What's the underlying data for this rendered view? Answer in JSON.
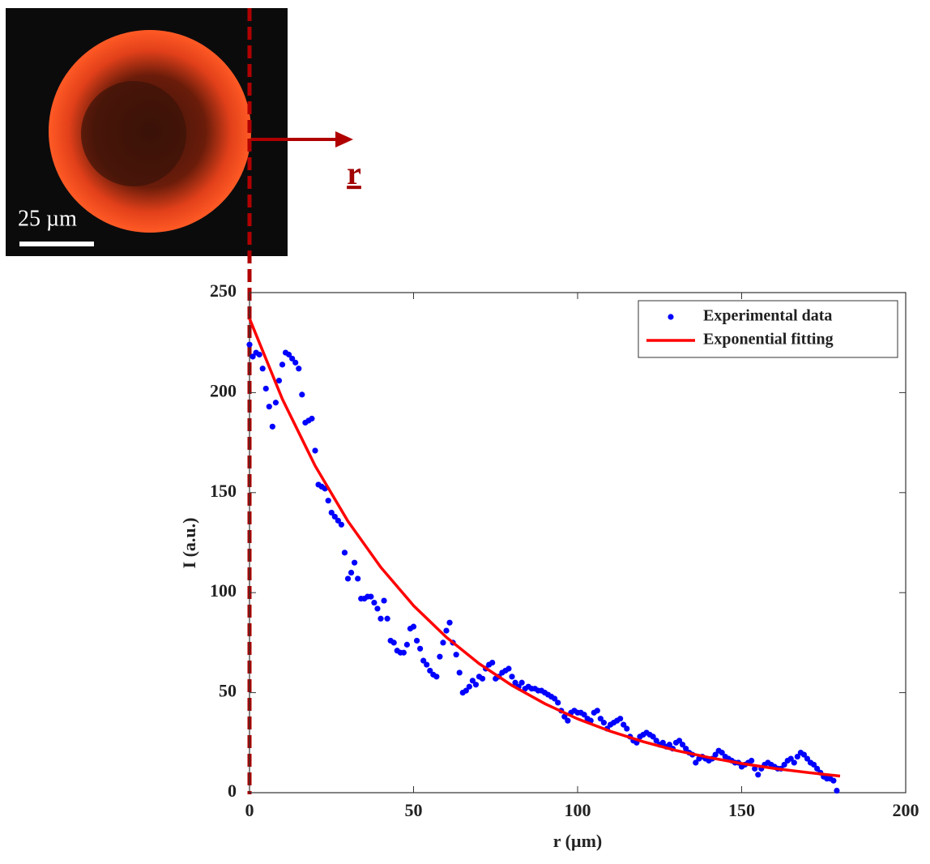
{
  "chart_data": {
    "type": "scatter",
    "xlabel": "r (µm)",
    "ylabel": "I (a.u.)",
    "annotations": [
      "25 µm",
      "r"
    ],
    "xlim": [
      0,
      200
    ],
    "xticks": [
      0,
      50,
      100,
      150,
      200
    ],
    "ylim": [
      0,
      250
    ],
    "yticks": [
      0,
      50,
      100,
      150,
      200,
      250
    ],
    "legend": "upper right",
    "grid": false,
    "series": [
      {
        "name": "Experimental data",
        "color": "#0000ff",
        "kind": "points",
        "x": [
          0,
          1,
          2,
          3,
          4,
          5,
          6,
          7,
          8,
          9,
          10,
          11,
          12,
          13,
          14,
          15,
          16,
          17,
          18,
          19,
          20,
          21,
          22,
          23,
          24,
          25,
          26,
          27,
          28,
          29,
          30,
          31,
          32,
          33,
          34,
          35,
          36,
          37,
          38,
          39,
          40,
          41,
          42,
          43,
          44,
          45,
          46,
          47,
          48,
          49,
          50,
          51,
          52,
          53,
          54,
          55,
          56,
          57,
          58,
          59,
          60,
          61,
          62,
          63,
          64,
          65,
          66,
          67,
          68,
          69,
          70,
          71,
          72,
          73,
          74,
          75,
          76,
          77,
          78,
          79,
          80,
          81,
          82,
          83,
          84,
          85,
          86,
          87,
          88,
          89,
          90,
          91,
          92,
          93,
          94,
          95,
          96,
          97,
          98,
          99,
          100,
          101,
          102,
          103,
          104,
          105,
          106,
          107,
          108,
          109,
          110,
          111,
          112,
          113,
          114,
          115,
          116,
          117,
          118,
          119,
          120,
          121,
          122,
          123,
          124,
          125,
          126,
          127,
          128,
          129,
          130,
          131,
          132,
          133,
          134,
          135,
          136,
          137,
          138,
          139,
          140,
          141,
          142,
          143,
          144,
          145,
          146,
          147,
          148,
          149,
          150,
          151,
          152,
          153,
          154,
          155,
          156,
          157,
          158,
          159,
          160,
          161,
          162,
          163,
          164,
          165,
          166,
          167,
          168,
          169,
          170,
          171,
          172,
          173,
          174,
          175,
          176,
          177,
          178,
          179
        ],
        "values": [
          224,
          218,
          220,
          219,
          212,
          202,
          193,
          183,
          195,
          206,
          214,
          220,
          219,
          217,
          215,
          212,
          199,
          185,
          186,
          187,
          171,
          154,
          153,
          152,
          146,
          140,
          138,
          136,
          134,
          120,
          107,
          110,
          115,
          107,
          97,
          97,
          98,
          98,
          95,
          92,
          87,
          96,
          87,
          76,
          75,
          71,
          70,
          70,
          74,
          82,
          83,
          76,
          72,
          66,
          64,
          61,
          59,
          58,
          68,
          75,
          81,
          85,
          75,
          69,
          60,
          50,
          51,
          53,
          56,
          54,
          58,
          57,
          62,
          64,
          65,
          57,
          58,
          60,
          61,
          62,
          58,
          55,
          53,
          55,
          52,
          53,
          52,
          52,
          51,
          51,
          50,
          49,
          48,
          47,
          45,
          41,
          38,
          36,
          40,
          41,
          40,
          40,
          39,
          37,
          36,
          40,
          41,
          37,
          35,
          32,
          34,
          35,
          36,
          37,
          34,
          32,
          28,
          26,
          25,
          28,
          29,
          30,
          29,
          28,
          26,
          24,
          25,
          23,
          24,
          22,
          25,
          26,
          24,
          22,
          20,
          19,
          15,
          17,
          18,
          17,
          16,
          17,
          19,
          21,
          20,
          18,
          17,
          16,
          15,
          15,
          13,
          14,
          15,
          16,
          12,
          9,
          12,
          14,
          15,
          14,
          13,
          12,
          12,
          14,
          16,
          17,
          15,
          18,
          20,
          19,
          17,
          15,
          14,
          12,
          10,
          8,
          7,
          7,
          6,
          1
        ]
      },
      {
        "name": "Exponential fitting",
        "color": "#ff0000",
        "kind": "line",
        "x": [
          0,
          10,
          20,
          30,
          40,
          50,
          60,
          70,
          80,
          90,
          100,
          110,
          120,
          130,
          140,
          150,
          160,
          170,
          180
        ],
        "values": [
          237,
          196.8,
          163.4,
          135.7,
          112.7,
          93.5,
          77.7,
          64.5,
          53.6,
          44.5,
          36.9,
          30.7,
          25.5,
          21.1,
          17.6,
          14.6,
          12.1,
          10.1,
          8.3
        ]
      }
    ]
  }
}
